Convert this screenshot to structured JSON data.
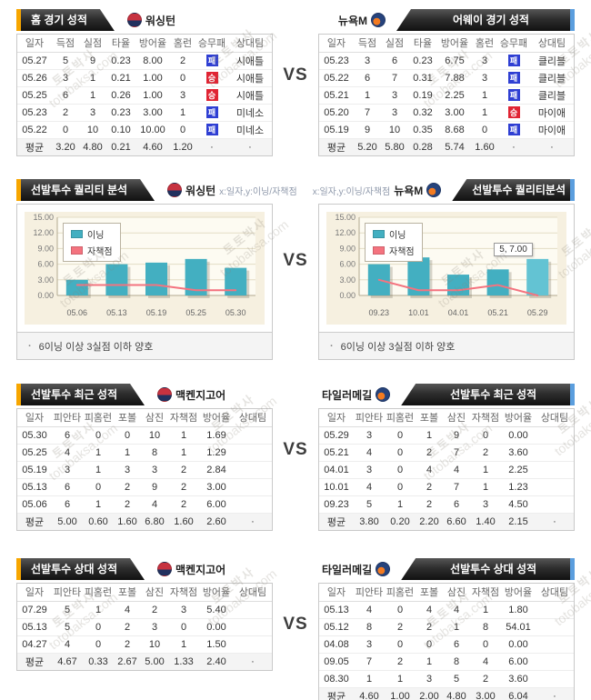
{
  "vs": "VS",
  "watermark": {
    "name": "토토박사",
    "domain": "totobaksa.com"
  },
  "teams": {
    "home": "워싱턴",
    "away": "뉴욕M"
  },
  "pitchers": {
    "home": "맥켄지고어",
    "away": "타일러메길"
  },
  "chart_note": "6이닝 이상 3실점 이하 양호",
  "axis_hint": "x:일자,y:이닝/자책점",
  "record_columns": [
    "일자",
    "득점",
    "실점",
    "타율",
    "방어율",
    "홈런",
    "승무패",
    "상대팀"
  ],
  "pitcher_columns": [
    "일자",
    "피안타",
    "피홈런",
    "포볼",
    "삼진",
    "자책점",
    "방어율",
    "상대팀"
  ],
  "colors": {
    "accent_home": "#f7a600",
    "accent_away": "#5b9ede",
    "win_badge": "#e02433",
    "loss_badge": "#2f3fd3",
    "bar": "#43afc1",
    "line": "#f4737f",
    "chart_bg": "#f6f0e0"
  },
  "sections": {
    "home_record": {
      "title": "홈 경기 성적",
      "rows": [
        [
          "05.27",
          "5",
          "9",
          "0.23",
          "8.00",
          "2",
          {
            "badge": "패",
            "type": "loss"
          },
          "시애틀"
        ],
        [
          "05.26",
          "3",
          "1",
          "0.21",
          "1.00",
          "0",
          {
            "badge": "승",
            "type": "win"
          },
          "시애틀"
        ],
        [
          "05.25",
          "6",
          "1",
          "0.26",
          "1.00",
          "3",
          {
            "badge": "승",
            "type": "win"
          },
          "시애틀"
        ],
        [
          "05.23",
          "2",
          "3",
          "0.23",
          "3.00",
          "1",
          {
            "badge": "패",
            "type": "loss"
          },
          "미네소"
        ],
        [
          "05.22",
          "0",
          "10",
          "0.10",
          "10.00",
          "0",
          {
            "badge": "패",
            "type": "loss"
          },
          "미네소"
        ]
      ],
      "avg": [
        "평균",
        "3.20",
        "4.80",
        "0.21",
        "4.60",
        "1.20",
        "·",
        "·"
      ]
    },
    "away_record": {
      "title": "어웨이 경기 성적",
      "rows": [
        [
          "05.23",
          "3",
          "6",
          "0.23",
          "6.75",
          "3",
          {
            "badge": "패",
            "type": "loss"
          },
          "클리블"
        ],
        [
          "05.22",
          "6",
          "7",
          "0.31",
          "7.88",
          "3",
          {
            "badge": "패",
            "type": "loss"
          },
          "클리블"
        ],
        [
          "05.21",
          "1",
          "3",
          "0.19",
          "2.25",
          "1",
          {
            "badge": "패",
            "type": "loss"
          },
          "클리블"
        ],
        [
          "05.20",
          "7",
          "3",
          "0.32",
          "3.00",
          "1",
          {
            "badge": "승",
            "type": "win"
          },
          "마이애"
        ],
        [
          "05.19",
          "9",
          "10",
          "0.35",
          "8.68",
          "0",
          {
            "badge": "패",
            "type": "loss"
          },
          "마이애"
        ]
      ],
      "avg": [
        "평균",
        "5.20",
        "5.80",
        "0.28",
        "5.74",
        "1.60",
        "·",
        "·"
      ]
    },
    "quality_left": {
      "title": "선발투수 퀄리티 분석"
    },
    "quality_right": {
      "title": "선발투수 퀄리티분석"
    },
    "recent_left": {
      "title": "선발투수 최근 성적",
      "rows": [
        [
          "05.30",
          "6",
          "0",
          "0",
          "10",
          "1",
          "1.69",
          ""
        ],
        [
          "05.25",
          "4",
          "1",
          "1",
          "8",
          "1",
          "1.29",
          ""
        ],
        [
          "05.19",
          "3",
          "1",
          "3",
          "3",
          "2",
          "2.84",
          ""
        ],
        [
          "05.13",
          "6",
          "0",
          "2",
          "9",
          "2",
          "3.00",
          ""
        ],
        [
          "05.06",
          "6",
          "1",
          "2",
          "4",
          "2",
          "6.00",
          ""
        ]
      ],
      "avg": [
        "평균",
        "5.00",
        "0.60",
        "1.60",
        "6.80",
        "1.60",
        "2.60",
        "·"
      ]
    },
    "recent_right": {
      "title": "선발투수 최근 성적",
      "rows": [
        [
          "05.29",
          "3",
          "0",
          "1",
          "9",
          "0",
          "0.00",
          ""
        ],
        [
          "05.21",
          "4",
          "0",
          "2",
          "7",
          "2",
          "3.60",
          ""
        ],
        [
          "04.01",
          "3",
          "0",
          "4",
          "4",
          "1",
          "2.25",
          ""
        ],
        [
          "10.01",
          "4",
          "0",
          "2",
          "7",
          "1",
          "1.23",
          ""
        ],
        [
          "09.23",
          "5",
          "1",
          "2",
          "6",
          "3",
          "4.50",
          ""
        ]
      ],
      "avg": [
        "평균",
        "3.80",
        "0.20",
        "2.20",
        "6.60",
        "1.40",
        "2.15",
        "·"
      ]
    },
    "versus_left": {
      "title": "선발투수 상대 성적",
      "rows": [
        [
          "07.29",
          "5",
          "1",
          "4",
          "2",
          "3",
          "5.40",
          ""
        ],
        [
          "05.13",
          "5",
          "0",
          "2",
          "3",
          "0",
          "0.00",
          ""
        ],
        [
          "04.27",
          "4",
          "0",
          "2",
          "10",
          "1",
          "1.50",
          ""
        ]
      ],
      "avg": [
        "평균",
        "4.67",
        "0.33",
        "2.67",
        "5.00",
        "1.33",
        "2.40",
        "·"
      ]
    },
    "versus_right": {
      "title": "선발투수 상대 성적",
      "rows": [
        [
          "05.13",
          "4",
          "0",
          "4",
          "4",
          "1",
          "1.80",
          ""
        ],
        [
          "05.12",
          "8",
          "2",
          "2",
          "1",
          "8",
          "54.01",
          ""
        ],
        [
          "04.08",
          "3",
          "0",
          "0",
          "6",
          "0",
          "0.00",
          ""
        ],
        [
          "09.05",
          "7",
          "2",
          "1",
          "8",
          "4",
          "6.00",
          ""
        ],
        [
          "08.30",
          "1",
          "1",
          "3",
          "5",
          "2",
          "3.60",
          ""
        ]
      ],
      "avg": [
        "평균",
        "4.60",
        "1.00",
        "2.00",
        "4.80",
        "3.00",
        "6.04",
        "·"
      ]
    }
  },
  "chart_data": [
    {
      "type": "bar+line",
      "title": "선발투수 퀄리티 분석",
      "team": "워싱턴",
      "xlabel": "일자",
      "ylabel": "이닝/자책점",
      "categories": [
        "05.06",
        "05.13",
        "05.19",
        "05.25",
        "05.30"
      ],
      "series": [
        {
          "name": "이닝",
          "type": "bar",
          "color": "#43afc1",
          "values": [
            3.0,
            6.0,
            6.3,
            7.0,
            5.3
          ]
        },
        {
          "name": "자책점",
          "type": "line",
          "color": "#f4737f",
          "values": [
            2.0,
            2.0,
            2.0,
            1.0,
            1.0
          ]
        }
      ],
      "ylim": [
        0,
        15
      ],
      "ytick_step": 3,
      "ytick_labels": [
        "0.00",
        "3.00",
        "6.00",
        "9.00",
        "12.00",
        "15.00"
      ],
      "legend_position": "top-left",
      "grid": true
    },
    {
      "type": "bar+line",
      "title": "선발투수 퀄리티분석",
      "team": "뉴욕M",
      "xlabel": "일자",
      "ylabel": "이닝/자책점",
      "categories": [
        "09.23",
        "10.01",
        "04.01",
        "05.21",
        "05.29"
      ],
      "series": [
        {
          "name": "이닝",
          "type": "bar",
          "color": "#43afc1",
          "values": [
            6.0,
            7.3,
            4.0,
            5.0,
            7.0
          ]
        },
        {
          "name": "자책점",
          "type": "line",
          "color": "#f4737f",
          "values": [
            3.0,
            1.0,
            1.0,
            2.0,
            0.0
          ]
        }
      ],
      "ylim": [
        0,
        15
      ],
      "ytick_step": 3,
      "ytick_labels": [
        "0.00",
        "3.00",
        "6.00",
        "9.00",
        "12.00",
        "15.00"
      ],
      "legend_position": "top-left",
      "grid": true,
      "tooltip": {
        "label": "5, 7.00",
        "point_index": 4
      }
    }
  ]
}
